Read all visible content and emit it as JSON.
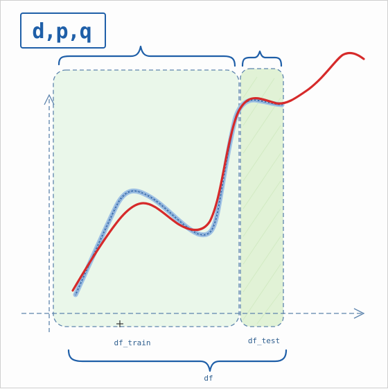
{
  "params_label": "d,p,q",
  "train_label": "df_train",
  "test_label": "df_test",
  "df_label": "df",
  "colors": {
    "ink": "#2f5f8f",
    "brace": "#1f5fa8",
    "train_fill": "#eaf7ea",
    "test_fill": "#dff1d2",
    "actual": "#3a6fb0",
    "forecast": "#d62a2a"
  },
  "series": {
    "actual": "blue hatched line",
    "forecast": "red line"
  }
}
